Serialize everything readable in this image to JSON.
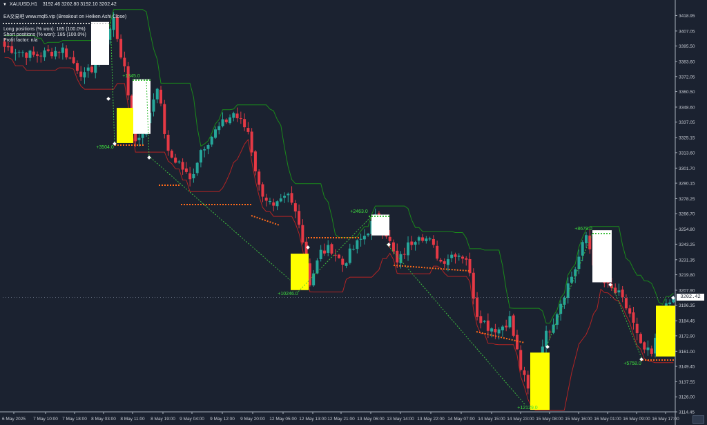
{
  "header": {
    "symbol": "XAUUSD,H1",
    "ohlc": "3192.46 3202.80 3192.10 3202.42",
    "ea_title": "EA交易吧 www.mql5.vip (Breakout on Heiken Ashi Close)",
    "long_positions": "Long positions (% won): 185 (100.0%)",
    "short_positions": "Short positions (% won): 185 (100.0%)",
    "profit_factor": "Profit factor: n/a"
  },
  "current_price_label": "3202.42",
  "colors": {
    "background": "#1b2230",
    "bull": "#26a69a",
    "bear": "#e53945",
    "upper_channel": "#1a8a1a",
    "lower_channel": "#b32424",
    "entry_exit_line": "#3fbf3f",
    "stop_dots": "#ff6a1a",
    "highlight_white": "#ffffff",
    "highlight_yellow": "#ffff00",
    "profit_label": "#3fdf3f",
    "grid_text": "#c8ccd4"
  },
  "chart_data": {
    "type": "candlestick",
    "title": "",
    "xlabel": "",
    "ylabel": "",
    "ylim": [
      3114.45,
      3424.5
    ],
    "grid": false,
    "y_ticks": [
      "3418.95",
      "3407.05",
      "3395.50",
      "3383.60",
      "3372.05",
      "3360.50",
      "3348.60",
      "3337.05",
      "3325.15",
      "3313.60",
      "3301.70",
      "3290.15",
      "3278.25",
      "3266.70",
      "3254.80",
      "3243.25",
      "3231.35",
      "3219.80",
      "3207.90",
      "3196.35",
      "3184.45",
      "3172.90",
      "3161.00",
      "3149.45",
      "3137.55",
      "3126.00",
      "3114.45"
    ],
    "x_tick_labels": [
      "6 May 2025",
      "7 May 10:00",
      "7 May 18:00",
      "8 May 03:00",
      "8 May 11:00",
      "8 May 19:00",
      "9 May 04:00",
      "9 May 12:00",
      "9 May 20:00",
      "12 May 05:00",
      "12 May 13:00",
      "12 May 21:00",
      "13 May 06:00",
      "13 May 14:00",
      "13 May 22:00",
      "14 May 07:00",
      "14 May 15:00",
      "14 May 23:00",
      "15 May 08:00",
      "15 May 16:00",
      "16 May 01:00",
      "16 May 09:00",
      "16 May 17:00"
    ],
    "close_anchors": [
      {
        "bar": 0,
        "price": 3395
      },
      {
        "bar": 8,
        "price": 3388
      },
      {
        "bar": 16,
        "price": 3393
      },
      {
        "bar": 22,
        "price": 3372
      },
      {
        "bar": 26,
        "price": 3385
      },
      {
        "bar": 30,
        "price": 3416
      },
      {
        "bar": 33,
        "price": 3376
      },
      {
        "bar": 36,
        "price": 3322
      },
      {
        "bar": 39,
        "price": 3335
      },
      {
        "bar": 42,
        "price": 3366
      },
      {
        "bar": 45,
        "price": 3312
      },
      {
        "bar": 48,
        "price": 3306
      },
      {
        "bar": 51,
        "price": 3292
      },
      {
        "bar": 54,
        "price": 3316
      },
      {
        "bar": 58,
        "price": 3330
      },
      {
        "bar": 63,
        "price": 3344
      },
      {
        "bar": 67,
        "price": 3330
      },
      {
        "bar": 70,
        "price": 3287
      },
      {
        "bar": 74,
        "price": 3270
      },
      {
        "bar": 78,
        "price": 3280
      },
      {
        "bar": 81,
        "price": 3262
      },
      {
        "bar": 84,
        "price": 3214
      },
      {
        "bar": 87,
        "price": 3237
      },
      {
        "bar": 90,
        "price": 3240
      },
      {
        "bar": 93,
        "price": 3228
      },
      {
        "bar": 96,
        "price": 3240
      },
      {
        "bar": 99,
        "price": 3250
      },
      {
        "bar": 102,
        "price": 3263
      },
      {
        "bar": 105,
        "price": 3252
      },
      {
        "bar": 108,
        "price": 3228
      },
      {
        "bar": 111,
        "price": 3242
      },
      {
        "bar": 114,
        "price": 3252
      },
      {
        "bar": 117,
        "price": 3245
      },
      {
        "bar": 120,
        "price": 3230
      },
      {
        "bar": 124,
        "price": 3237
      },
      {
        "bar": 127,
        "price": 3233
      },
      {
        "bar": 130,
        "price": 3190
      },
      {
        "bar": 133,
        "price": 3180
      },
      {
        "bar": 136,
        "price": 3178
      },
      {
        "bar": 139,
        "price": 3186
      },
      {
        "bar": 142,
        "price": 3148
      },
      {
        "bar": 145,
        "price": 3122
      },
      {
        "bar": 148,
        "price": 3168
      },
      {
        "bar": 151,
        "price": 3185
      },
      {
        "bar": 154,
        "price": 3206
      },
      {
        "bar": 157,
        "price": 3225
      },
      {
        "bar": 160,
        "price": 3250
      },
      {
        "bar": 163,
        "price": 3220
      },
      {
        "bar": 166,
        "price": 3210
      },
      {
        "bar": 169,
        "price": 3204
      },
      {
        "bar": 172,
        "price": 3190
      },
      {
        "bar": 175,
        "price": 3164
      },
      {
        "bar": 178,
        "price": 3158
      },
      {
        "bar": 181,
        "price": 3190
      },
      {
        "bar": 184,
        "price": 3202
      }
    ],
    "bar_count": 185,
    "series": [
      {
        "name": "upper_channel",
        "type": "line"
      },
      {
        "name": "lower_channel",
        "type": "line"
      }
    ],
    "highlight_boxes": [
      {
        "color": "white",
        "x1": "8 May 02:00",
        "x2": "8 May 08:00",
        "y_top": 3414,
        "y_bottom": 3381
      },
      {
        "color": "white",
        "x1": "8 May 12:00",
        "x2": "8 May 17:00",
        "y_top": 3370,
        "y_bottom": 3328
      },
      {
        "color": "yellow",
        "x1": "8 May 09:00",
        "x2": "8 May 13:00",
        "y_top": 3348,
        "y_bottom": 3321
      },
      {
        "color": "white",
        "x1": "13 May 02:00",
        "x2": "13 May 07:00",
        "y_top": 3266,
        "y_bottom": 3250
      },
      {
        "color": "yellow",
        "x1": "12 May 04:00",
        "x2": "12 May 08:00",
        "y_top": 3236,
        "y_bottom": 3208
      },
      {
        "color": "yellow",
        "x1": "15 May 02:00",
        "x2": "15 May 07:00",
        "y_top": 3160,
        "y_bottom": 3116
      },
      {
        "color": "white",
        "x1": "15 May 22:00",
        "x2": "16 May 03:00",
        "y_top": 3254,
        "y_bottom": 3214
      },
      {
        "color": "yellow",
        "x1": "16 May 13:00",
        "x2": "16 May 18:00",
        "y_top": 3196,
        "y_bottom": 3157
      }
    ],
    "trade_labels": [
      {
        "text": "+3504.0",
        "at": "8 May 07:00",
        "price": 3320
      },
      {
        "text": "+1345.0",
        "at": "8 May 09:00",
        "price": 3372
      },
      {
        "text": "+10246.0",
        "at": "12 May 04:00",
        "price": 3205
      },
      {
        "text": "+2463.0",
        "at": "13 May 01:00",
        "price": 3268
      },
      {
        "text": "+12129.0",
        "at": "15 May 03:00",
        "price": 3117
      },
      {
        "text": "+8679.0",
        "at": "15 May 20:00",
        "price": 3255
      },
      {
        "text": "+5758.0",
        "at": "16 May 09:00",
        "price": 3155
      }
    ]
  }
}
